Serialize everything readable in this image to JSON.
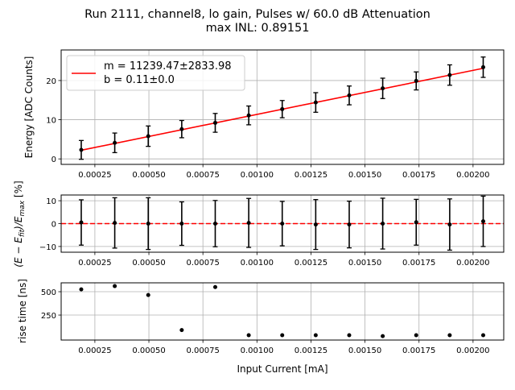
{
  "title_line1": "Run 2111, channel8, lo gain, Pulses w/ 60.0 dB Attenuation",
  "title_line2": "max INL: 0.89151",
  "chart_data": [
    {
      "type": "scatter",
      "panel": "energy",
      "ylabel": "Energy [ADC Counts]",
      "xlim": [
        9.4e-05,
        0.002142
      ],
      "ylim": [
        -1.4,
        27.8
      ],
      "xticks": [
        0.00025,
        0.0005,
        0.00075,
        0.001,
        0.00125,
        0.0015,
        0.00175,
        0.002
      ],
      "xtick_labels": [
        "0.00025",
        "0.00050",
        "0.00075",
        "0.00100",
        "0.00125",
        "0.00150",
        "0.00175",
        "0.00200"
      ],
      "yticks": [
        0,
        10,
        20
      ],
      "ytick_labels": [
        "0",
        "10",
        "20"
      ],
      "grid": true,
      "x": [
        0.000187,
        0.000342,
        0.000497,
        0.000652,
        0.000807,
        0.000962,
        0.001117,
        0.001272,
        0.001427,
        0.001582,
        0.001737,
        0.001892,
        0.002047
      ],
      "y": [
        2.3,
        4.1,
        5.8,
        7.6,
        9.2,
        11.1,
        12.7,
        14.4,
        16.2,
        18.0,
        19.9,
        21.4,
        23.4
      ],
      "yerr": [
        2.4,
        2.5,
        2.6,
        2.2,
        2.4,
        2.4,
        2.2,
        2.5,
        2.4,
        2.6,
        2.3,
        2.6,
        2.6
      ],
      "fit": {
        "m": 11239.47,
        "b": 0.11,
        "color": "#ff0000"
      },
      "legend": {
        "placement": "upper-left",
        "line1": "m = 11239.47±2833.98",
        "line2": "b = 0.11±0.0"
      }
    },
    {
      "type": "scatter",
      "panel": "residual",
      "ylabel_pre": "(E − E",
      "ylabel_sub1": "fit",
      "ylabel_mid": ")/E",
      "ylabel_sub2": "max",
      "ylabel_post": " [%]",
      "xlim": [
        9.4e-05,
        0.002142
      ],
      "ylim": [
        -12.5,
        12.5
      ],
      "yticks": [
        -10,
        0,
        10
      ],
      "ytick_labels": [
        "−10",
        "0",
        "10"
      ],
      "grid": true,
      "y": [
        0.5,
        0.3,
        0.0,
        0.0,
        0.0,
        0.3,
        0.0,
        -0.4,
        -0.4,
        0.0,
        0.6,
        -0.4,
        1.0
      ],
      "yerr": [
        9.9,
        11.0,
        11.3,
        9.5,
        10.1,
        10.7,
        9.7,
        10.9,
        10.2,
        11.1,
        10.0,
        11.2,
        11.0
      ],
      "zero_line_color": "#ff0000"
    },
    {
      "type": "scatter",
      "panel": "risetime",
      "ylabel": "rise time [ns]",
      "xlabel": "Input Current [mA]",
      "xlim": [
        9.4e-05,
        0.002142
      ],
      "ylim": [
        -17,
        595
      ],
      "yticks": [
        250,
        500
      ],
      "ytick_labels": [
        "250",
        "500"
      ],
      "grid": true,
      "y": [
        525,
        560,
        465,
        90,
        550,
        35,
        35,
        35,
        35,
        25,
        35,
        35,
        35
      ]
    }
  ]
}
